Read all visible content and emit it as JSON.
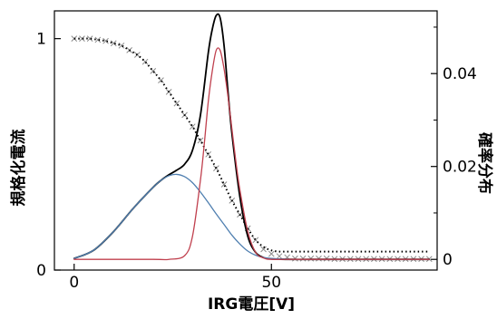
{
  "chart_data": {
    "type": "line",
    "title": "",
    "xlabel": "IRG電圧[V]",
    "ylabel_left": "規格化電流",
    "ylabel_right": "確率分布",
    "xlim": [
      -5,
      92
    ],
    "ylim_left": [
      0,
      1.12
    ],
    "ylim_right": [
      -0.0023,
      0.0535
    ],
    "x_ticks": [
      0,
      50
    ],
    "y_left_ticks": [
      0,
      1
    ],
    "y_right_ticks": [
      0,
      0.02,
      0.04
    ],
    "grid": false,
    "legend": "none",
    "series": [
      {
        "axis": "left",
        "style": "markers-x",
        "color": "#8c8c8c",
        "x": [
          0,
          2,
          4,
          6,
          8,
          10,
          12,
          14,
          16,
          18,
          20,
          22,
          24,
          26,
          28,
          30,
          32,
          34,
          36,
          38,
          40,
          42,
          44,
          46,
          48,
          50,
          52,
          54,
          56,
          58,
          60,
          62,
          64,
          66,
          68,
          70,
          72,
          74,
          76,
          78,
          80,
          82,
          84,
          86,
          88,
          90
        ],
        "values": [
          1.0,
          1.0,
          1.0,
          0.995,
          0.99,
          0.98,
          0.97,
          0.95,
          0.93,
          0.9,
          0.86,
          0.82,
          0.77,
          0.72,
          0.67,
          0.62,
          0.56,
          0.5,
          0.44,
          0.37,
          0.3,
          0.24,
          0.18,
          0.13,
          0.09,
          0.07,
          0.06,
          0.055,
          0.05,
          0.05,
          0.05,
          0.05,
          0.05,
          0.048,
          0.048,
          0.048,
          0.048,
          0.048,
          0.048,
          0.048,
          0.048,
          0.048,
          0.048,
          0.048,
          0.048,
          0.048
        ]
      },
      {
        "axis": "left",
        "style": "dotted",
        "color": "#000000",
        "x": [
          0,
          2,
          4,
          6,
          8,
          10,
          12,
          14,
          16,
          18,
          20,
          22,
          24,
          26,
          28,
          30,
          32,
          34,
          36,
          38,
          40,
          42,
          44,
          46,
          48,
          50,
          52,
          54,
          56,
          58,
          60,
          62,
          64,
          66,
          68,
          70,
          72,
          74,
          76,
          78,
          80,
          82,
          84,
          86,
          88,
          90
        ],
        "values": [
          1.0,
          1.0,
          1.0,
          0.995,
          0.99,
          0.98,
          0.97,
          0.95,
          0.93,
          0.9,
          0.86,
          0.82,
          0.77,
          0.72,
          0.67,
          0.62,
          0.56,
          0.5,
          0.44,
          0.37,
          0.3,
          0.24,
          0.18,
          0.13,
          0.1,
          0.085,
          0.08,
          0.08,
          0.08,
          0.08,
          0.08,
          0.08,
          0.08,
          0.08,
          0.08,
          0.08,
          0.08,
          0.08,
          0.08,
          0.08,
          0.08,
          0.08,
          0.08,
          0.08,
          0.08,
          0.08
        ]
      },
      {
        "axis": "right",
        "style": "line",
        "color": "#000000",
        "x": [
          0,
          5,
          10,
          15,
          20,
          22,
          24,
          26,
          28,
          30,
          32,
          34,
          35,
          36,
          37,
          38,
          39,
          40,
          42,
          44,
          46,
          48,
          50,
          55,
          60,
          70,
          80,
          90
        ],
        "values": [
          0.0002,
          0.002,
          0.006,
          0.011,
          0.0155,
          0.017,
          0.0182,
          0.0192,
          0.0205,
          0.0235,
          0.031,
          0.0445,
          0.0495,
          0.0525,
          0.052,
          0.046,
          0.036,
          0.027,
          0.0135,
          0.005,
          0.0015,
          0.0004,
          0.0001,
          0,
          0,
          0,
          0,
          0
        ]
      },
      {
        "axis": "right",
        "style": "line",
        "color": "#4f7fb0",
        "x": [
          0,
          5,
          10,
          15,
          20,
          22,
          24,
          26,
          28,
          30,
          32,
          34,
          36,
          38,
          40,
          42,
          44,
          46,
          48,
          50,
          55,
          60,
          70,
          80,
          90
        ],
        "values": [
          0.0002,
          0.002,
          0.006,
          0.011,
          0.0155,
          0.017,
          0.018,
          0.0183,
          0.0178,
          0.0165,
          0.0145,
          0.0122,
          0.0098,
          0.0075,
          0.0052,
          0.0033,
          0.0018,
          0.0009,
          0.0004,
          0.0002,
          0,
          0,
          0,
          0,
          0
        ]
      },
      {
        "axis": "right",
        "style": "line",
        "color": "#c0404e",
        "x": [
          0,
          20,
          24,
          28,
          30,
          32,
          33,
          34,
          35,
          36,
          37,
          38,
          39,
          40,
          41,
          42,
          44,
          46,
          48,
          50,
          55,
          60,
          70,
          80,
          90
        ],
        "values": [
          0,
          0,
          0,
          0.0008,
          0.005,
          0.017,
          0.025,
          0.034,
          0.0405,
          0.045,
          0.045,
          0.041,
          0.035,
          0.028,
          0.021,
          0.015,
          0.006,
          0.0015,
          0.0003,
          0,
          0,
          0,
          0,
          0,
          0
        ]
      }
    ]
  }
}
